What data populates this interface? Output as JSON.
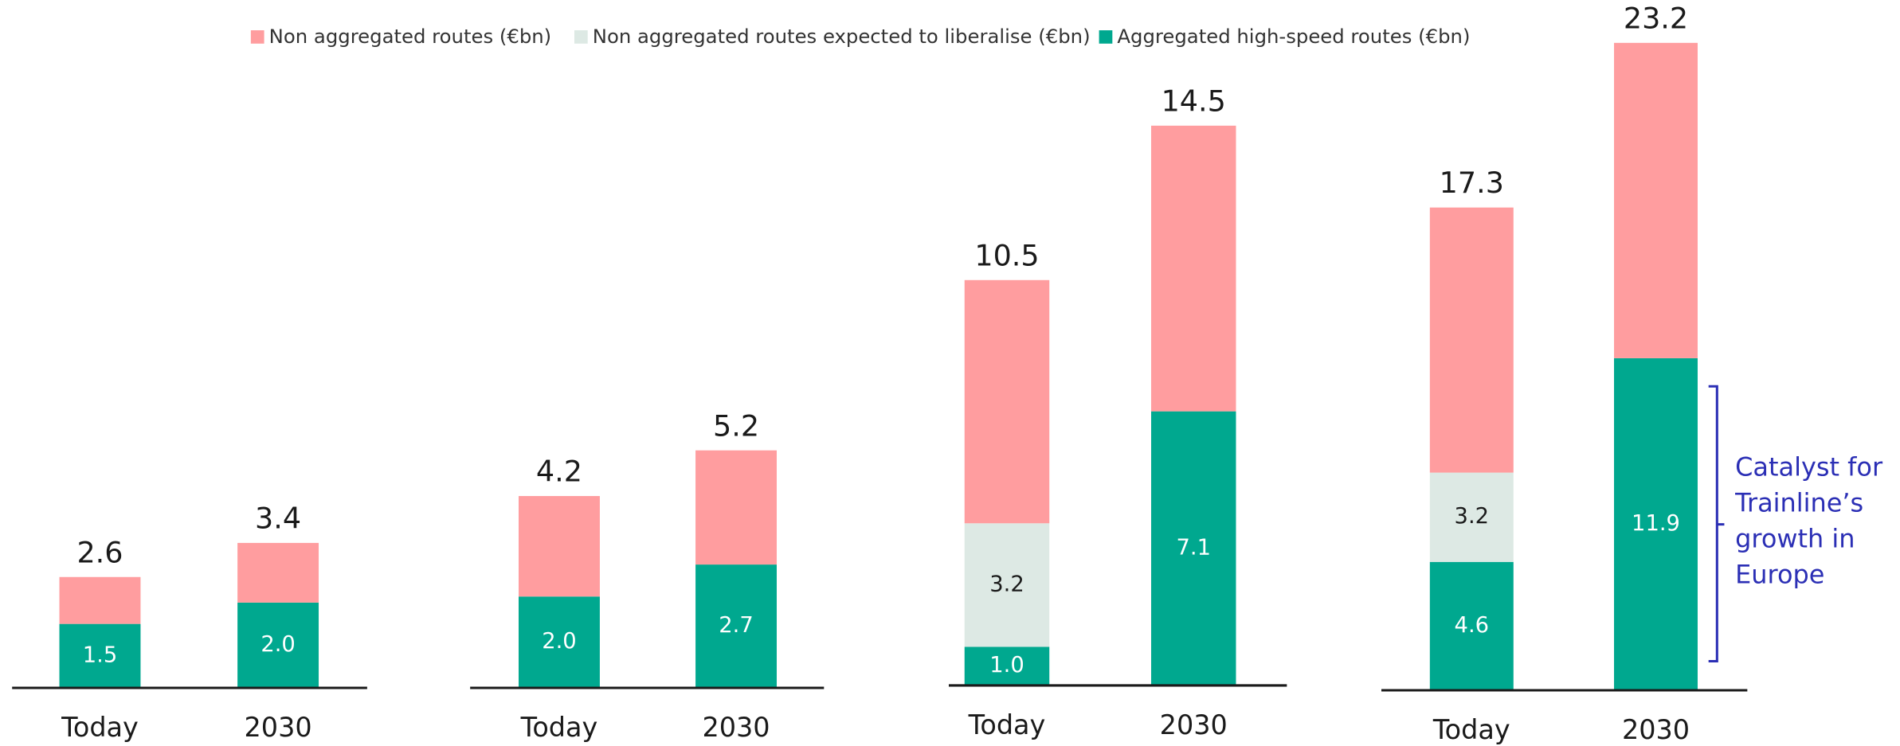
{
  "chart_data": [
    {
      "type": "bar",
      "stacked": true,
      "categories": [
        "Today",
        "2030"
      ],
      "ylim": [
        0,
        15
      ],
      "series": [
        {
          "name": "Non aggregated routes (€bn)",
          "color": "#ff9d9f",
          "values": [
            1.1,
            1.4
          ]
        },
        {
          "name": "Non aggregated routes expected to liberalise (€bn)",
          "color": "#dde9e4",
          "values": [
            null,
            null
          ]
        },
        {
          "name": "Aggregated high-speed routes (€bn)",
          "color": "#00a88f",
          "values": [
            1.5,
            2.0
          ],
          "value_labels": [
            "1.5",
            "2.0"
          ]
        }
      ],
      "totals": [
        2.6,
        3.4
      ]
    },
    {
      "type": "bar",
      "stacked": true,
      "categories": [
        "Today",
        "2030"
      ],
      "ylim": [
        0,
        14
      ],
      "series": [
        {
          "color": "#ff9d9f",
          "values": [
            2.2,
            2.5
          ]
        },
        {
          "color": "#dde9e4",
          "values": [
            null,
            null
          ]
        },
        {
          "color": "#00a88f",
          "values": [
            2.0,
            2.7
          ],
          "value_labels": [
            "2.0",
            "2.7"
          ]
        }
      ],
      "totals": [
        4.2,
        5.2
      ]
    },
    {
      "type": "bar",
      "stacked": true,
      "categories": [
        "Today",
        "2030"
      ],
      "ylim": [
        0,
        16.5
      ],
      "series": [
        {
          "color": "#ff9d9f",
          "values": [
            6.3,
            7.4
          ]
        },
        {
          "color": "#dde9e4",
          "values": [
            3.2,
            null
          ]
        },
        {
          "color": "#00a88f",
          "values": [
            1.0,
            7.1
          ],
          "value_labels": [
            "1.0",
            "7.1"
          ]
        }
      ],
      "totals": [
        10.5,
        14.5
      ]
    },
    {
      "type": "bar",
      "stacked": true,
      "categories": [
        "Today",
        "2030"
      ],
      "ylim": [
        0,
        23
      ],
      "series": [
        {
          "color": "#ff9d9f",
          "values": [
            9.5,
            11.3
          ]
        },
        {
          "color": "#dde9e4",
          "values": [
            3.2,
            null
          ]
        },
        {
          "color": "#00a88f",
          "values": [
            4.6,
            11.9
          ],
          "value_labels": [
            "4.6",
            "11.9"
          ]
        }
      ],
      "totals": [
        17.3,
        23.2
      ],
      "annotation": [
        "Catalyst for",
        "Trainline’s",
        "growth in",
        "Europe"
      ]
    }
  ]
}
